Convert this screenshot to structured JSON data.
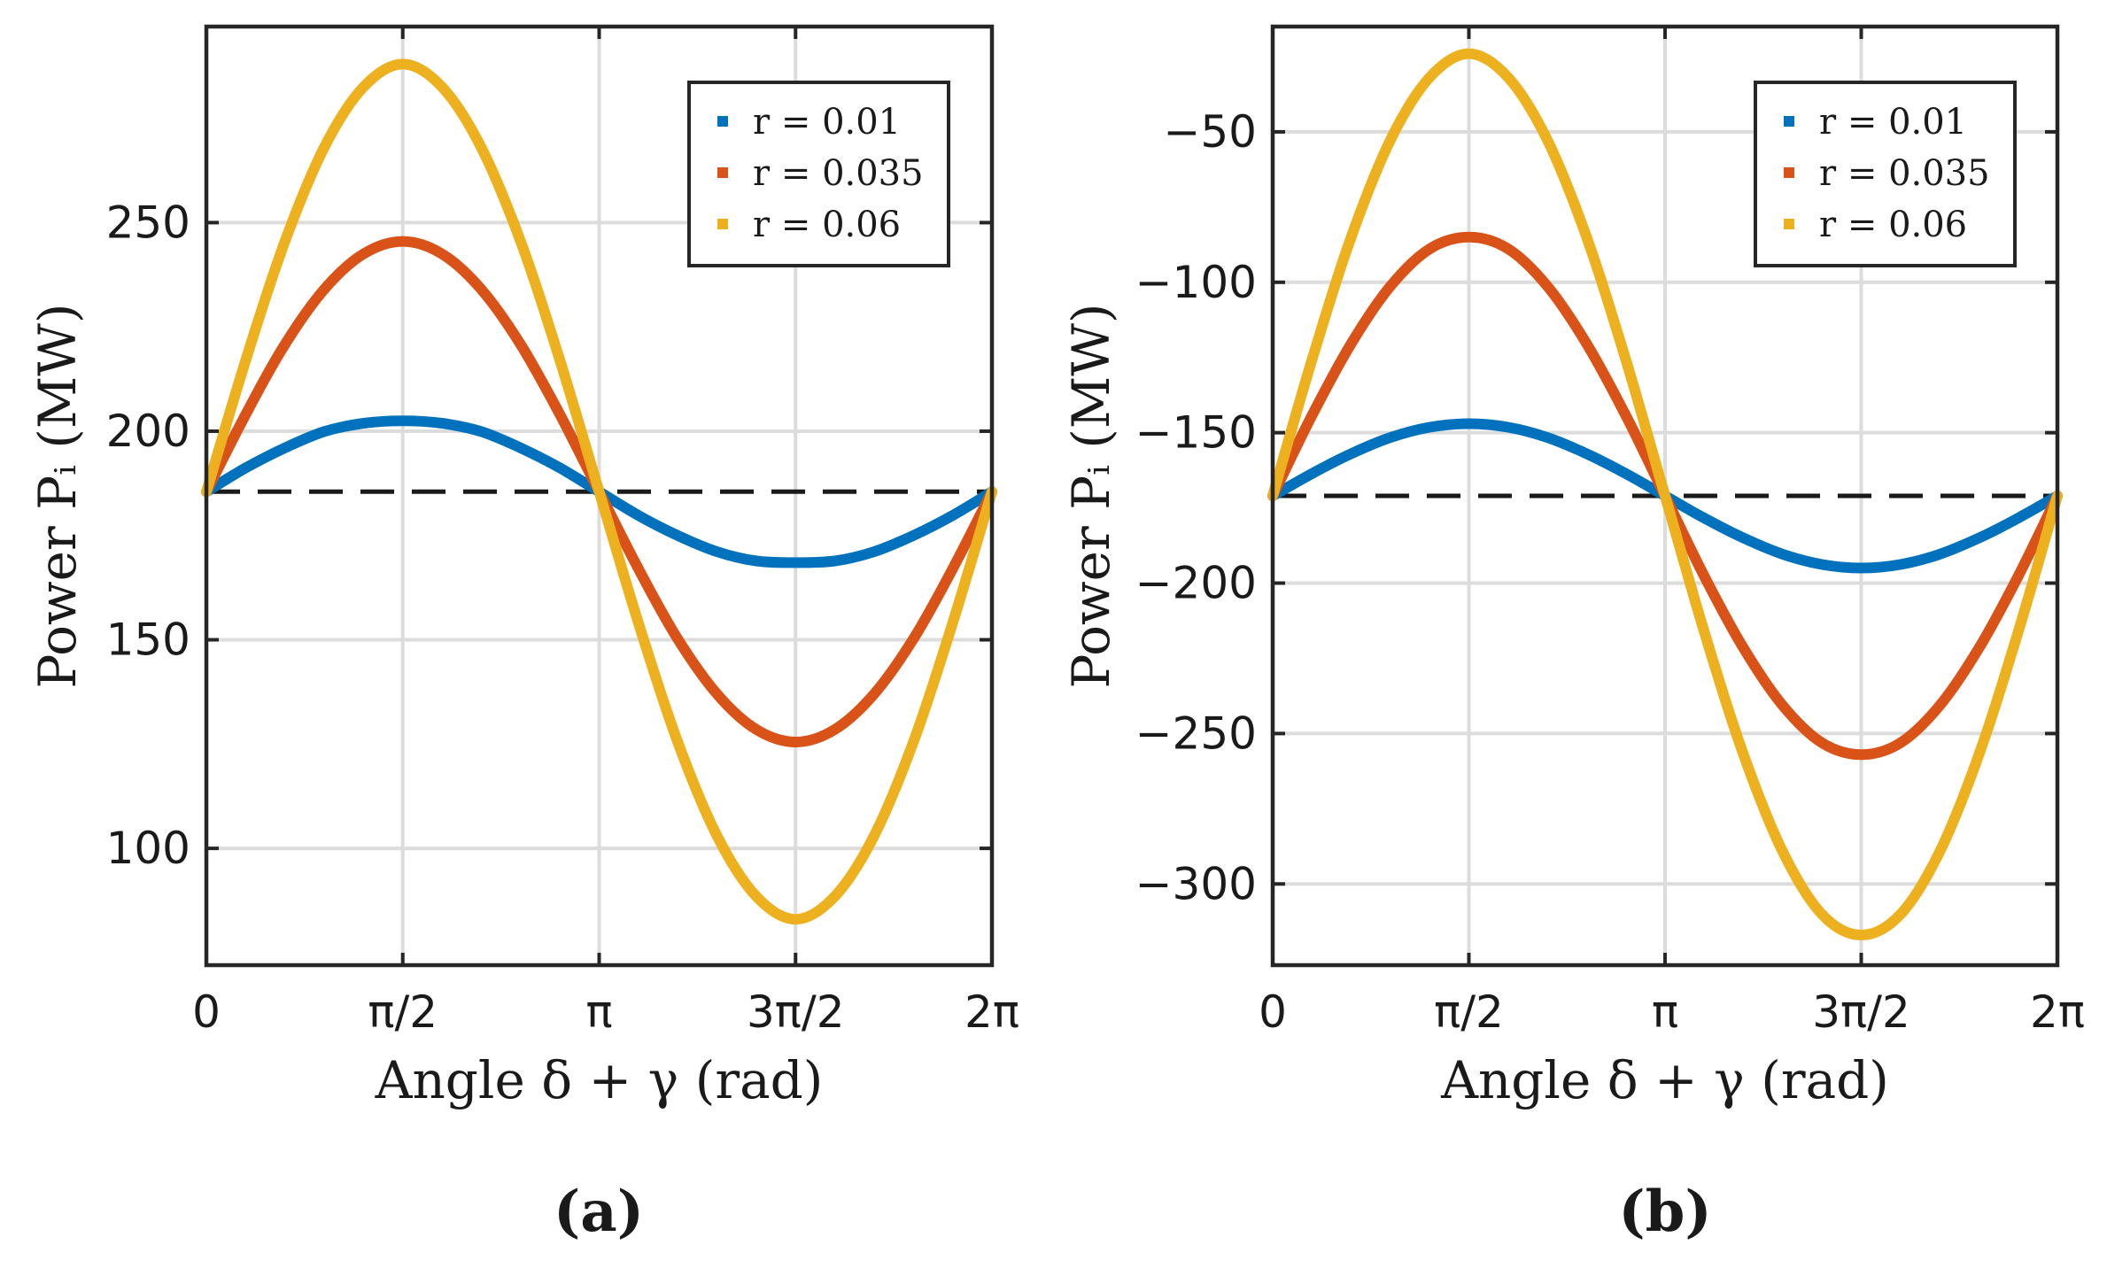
{
  "chart_data": [
    {
      "id": "a",
      "type": "line",
      "panel_label": "(a)",
      "xlabel": "Angle δ + γ (rad)",
      "ylabel": "Power  Pᵢ (MW)",
      "xlim": [
        0,
        6.283185307
      ],
      "ylim": [
        72,
        297
      ],
      "xticks": [
        0,
        1.570796327,
        3.141592654,
        4.71238898,
        6.283185307
      ],
      "xtick_labels": [
        "0",
        "π/2",
        "π",
        "3π/2",
        "2π"
      ],
      "yticks": [
        100,
        150,
        200,
        250
      ],
      "ytick_labels": [
        "100",
        "150",
        "200",
        "250"
      ],
      "grid": true,
      "legend_position": "top-right",
      "baseline": 185.5,
      "series": [
        {
          "name": "r = 0.01",
          "color": "#0072BD",
          "values": [
            185.5,
            191.2,
            196.0,
            199.9,
            201.9,
            202.5,
            201.9,
            199.9,
            196.0,
            191.2,
            185.5,
            179.8,
            175.0,
            171.1,
            168.9,
            168.5,
            168.9,
            171.1,
            175.0,
            179.8,
            185.5
          ]
        },
        {
          "name": "r = 0.035",
          "color": "#D95319",
          "values": [
            185.5,
            204.0,
            220.8,
            234.0,
            242.5,
            245.5,
            242.5,
            234.0,
            220.8,
            204.0,
            185.5,
            167.0,
            150.2,
            137.0,
            128.5,
            125.5,
            128.5,
            137.0,
            150.2,
            167.0,
            185.5
          ]
        },
        {
          "name": "r = 0.06",
          "color": "#EDB120",
          "values": [
            185.5,
            217.0,
            245.5,
            268.0,
            282.5,
            288.0,
            282.5,
            268.0,
            245.5,
            217.0,
            185.5,
            154.0,
            125.5,
            103.0,
            88.5,
            83.0,
            88.5,
            103.0,
            125.5,
            154.0,
            185.5
          ]
        }
      ]
    },
    {
      "id": "b",
      "type": "line",
      "panel_label": "(b)",
      "xlabel": "Angle δ + γ (rad)",
      "ylabel": "Power  Pᵢ (MW)",
      "xlim": [
        0,
        6.283185307
      ],
      "ylim": [
        -327,
        -15
      ],
      "xticks": [
        0,
        1.570796327,
        3.141592654,
        4.71238898,
        6.283185307
      ],
      "xtick_labels": [
        "0",
        "π/2",
        "π",
        "3π/2",
        "2π"
      ],
      "yticks": [
        -300,
        -250,
        -200,
        -150,
        -100,
        -50
      ],
      "ytick_labels": [
        "−300",
        "−250",
        "−200",
        "−150",
        "−100",
        "−50"
      ],
      "grid": true,
      "legend_position": "top-right",
      "baseline": -171,
      "series": [
        {
          "name": "r = 0.01",
          "color": "#0072BD",
          "values": [
            -171,
            -163.6,
            -157.0,
            -151.6,
            -148.2,
            -147.0,
            -148.2,
            -151.6,
            -157.0,
            -163.6,
            -171,
            -178.4,
            -185.0,
            -190.4,
            -193.8,
            -195.0,
            -193.8,
            -190.4,
            -185.0,
            -178.4,
            -171
          ]
        },
        {
          "name": "r = 0.035",
          "color": "#D95319",
          "values": [
            -171,
            -144.3,
            -120.4,
            -101.3,
            -88.9,
            -85.0,
            -88.9,
            -101.3,
            -120.4,
            -144.3,
            -171,
            -197.7,
            -221.6,
            -240.7,
            -253.1,
            -257.0,
            -253.1,
            -240.7,
            -221.6,
            -197.7,
            -171
          ]
        },
        {
          "name": "r = 0.06",
          "color": "#EDB120",
          "values": [
            -171,
            -125.8,
            -85.0,
            -52.7,
            -31.9,
            -24.0,
            -31.9,
            -52.7,
            -85.0,
            -125.8,
            -171,
            -216.2,
            -257.0,
            -289.3,
            -310.1,
            -317.0,
            -310.1,
            -289.3,
            -257.0,
            -216.2,
            -171
          ]
        }
      ]
    }
  ]
}
